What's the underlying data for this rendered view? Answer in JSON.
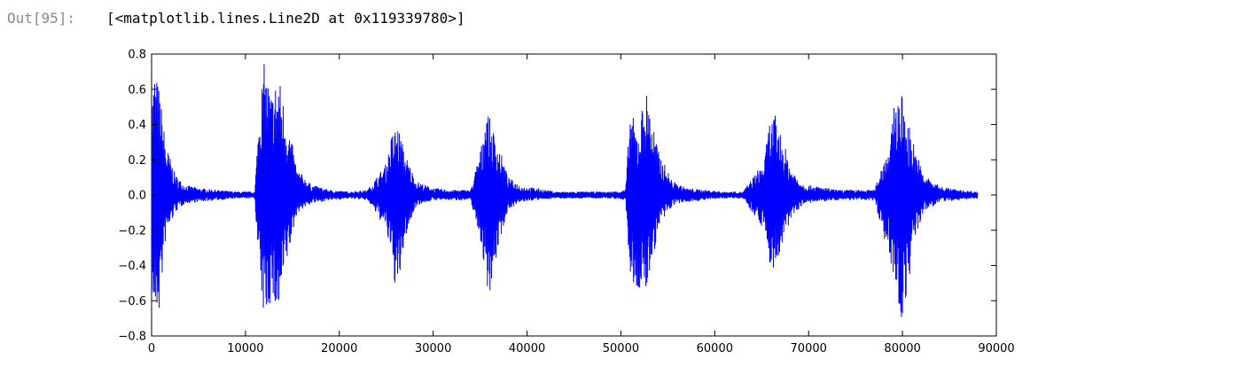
{
  "output": {
    "prompt": "Out[95]:",
    "text": "[<matplotlib.lines.Line2D at 0x119339780>]"
  },
  "chart_data": {
    "type": "line",
    "title": "",
    "xlabel": "",
    "ylabel": "",
    "xlim": [
      0,
      90000
    ],
    "ylim": [
      -0.8,
      0.8
    ],
    "xticks": [
      0,
      10000,
      20000,
      30000,
      40000,
      50000,
      60000,
      70000,
      80000,
      90000
    ],
    "yticks": [
      0.8,
      0.6,
      0.4,
      0.2,
      0.0,
      -0.2,
      -0.4,
      -0.6,
      -0.8
    ],
    "xtick_labels": [
      "0",
      "10000",
      "20000",
      "30000",
      "40000",
      "50000",
      "60000",
      "70000",
      "80000",
      "90000"
    ],
    "ytick_labels": [
      "0.8",
      "0.6",
      "0.4",
      "0.2",
      "0.0",
      "−0.2",
      "−0.4",
      "−0.6",
      "−0.8"
    ],
    "grid": false,
    "legend": "none",
    "series_color": "#0000ff",
    "series": [
      {
        "x": [
          0,
          300,
          800,
          1500,
          2500,
          3500,
          5000,
          7000,
          9000,
          11000,
          11500,
          12000,
          12800,
          13500,
          14200,
          15500,
          17000,
          19000,
          21000,
          23000,
          25000,
          25600,
          26200,
          27000,
          28200,
          30000,
          32000,
          34000,
          35200,
          35600,
          36200,
          37000,
          38000,
          39500,
          41000,
          43000,
          45000,
          47000,
          49000,
          50500,
          51000,
          51800,
          52600,
          53200,
          54000,
          55500,
          57000,
          59000,
          61000,
          63000,
          65300,
          65800,
          66400,
          67200,
          68200,
          69500,
          71000,
          73000,
          75000,
          77000,
          78800,
          79200,
          79900,
          80500,
          81200,
          82200,
          84000,
          86000,
          88000
        ],
        "ymax": [
          0.55,
          0.72,
          0.62,
          0.3,
          0.12,
          0.06,
          0.04,
          0.03,
          0.02,
          0.02,
          0.55,
          0.75,
          0.58,
          0.7,
          0.5,
          0.15,
          0.06,
          0.03,
          0.02,
          0.03,
          0.18,
          0.35,
          0.41,
          0.24,
          0.08,
          0.04,
          0.03,
          0.03,
          0.3,
          0.52,
          0.4,
          0.28,
          0.1,
          0.05,
          0.04,
          0.02,
          0.02,
          0.02,
          0.02,
          0.03,
          0.5,
          0.35,
          0.62,
          0.48,
          0.25,
          0.08,
          0.04,
          0.03,
          0.02,
          0.02,
          0.2,
          0.42,
          0.46,
          0.32,
          0.15,
          0.06,
          0.05,
          0.03,
          0.03,
          0.03,
          0.35,
          0.56,
          0.58,
          0.45,
          0.3,
          0.12,
          0.05,
          0.03,
          0.02
        ],
        "ymin": [
          -0.55,
          -0.72,
          -0.68,
          -0.25,
          -0.1,
          -0.05,
          -0.04,
          -0.03,
          -0.02,
          -0.02,
          -0.5,
          -0.72,
          -0.6,
          -0.72,
          -0.45,
          -0.1,
          -0.05,
          -0.03,
          -0.02,
          -0.03,
          -0.2,
          -0.4,
          -0.6,
          -0.25,
          -0.06,
          -0.03,
          -0.03,
          -0.03,
          -0.3,
          -0.52,
          -0.55,
          -0.28,
          -0.08,
          -0.04,
          -0.03,
          -0.02,
          -0.02,
          -0.02,
          -0.02,
          -0.03,
          -0.5,
          -0.55,
          -0.58,
          -0.42,
          -0.2,
          -0.06,
          -0.04,
          -0.03,
          -0.02,
          -0.02,
          -0.2,
          -0.4,
          -0.43,
          -0.3,
          -0.12,
          -0.05,
          -0.04,
          -0.03,
          -0.03,
          -0.03,
          -0.4,
          -0.6,
          -0.72,
          -0.55,
          -0.3,
          -0.1,
          -0.04,
          -0.03,
          -0.02
        ]
      }
    ]
  }
}
